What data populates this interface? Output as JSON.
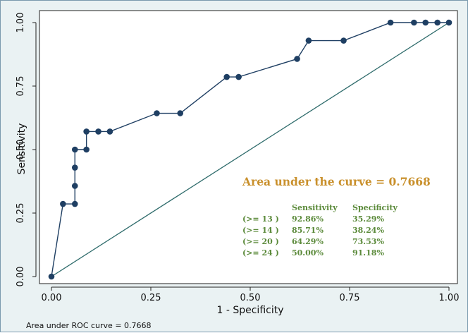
{
  "chart_data": {
    "type": "line",
    "xlabel": "1 - Specificity",
    "ylabel": "Sensitivity",
    "xlim": [
      0,
      1
    ],
    "ylim": [
      0,
      1
    ],
    "x_ticks": [
      "0.00",
      "0.25",
      "0.50",
      "0.75",
      "1.00"
    ],
    "y_ticks": [
      "0.00",
      "0.25",
      "0.50",
      "0.75",
      "1.00"
    ],
    "grid": false,
    "series": [
      {
        "values": [
          {
            "x": 0.0,
            "y": 0.0
          },
          {
            "x": 0.029,
            "y": 0.286
          },
          {
            "x": 0.059,
            "y": 0.286
          },
          {
            "x": 0.059,
            "y": 0.357
          },
          {
            "x": 0.059,
            "y": 0.429
          },
          {
            "x": 0.059,
            "y": 0.5
          },
          {
            "x": 0.088,
            "y": 0.5
          },
          {
            "x": 0.088,
            "y": 0.571
          },
          {
            "x": 0.118,
            "y": 0.571
          },
          {
            "x": 0.147,
            "y": 0.571
          },
          {
            "x": 0.265,
            "y": 0.643
          },
          {
            "x": 0.324,
            "y": 0.643
          },
          {
            "x": 0.441,
            "y": 0.786
          },
          {
            "x": 0.471,
            "y": 0.786
          },
          {
            "x": 0.618,
            "y": 0.857
          },
          {
            "x": 0.647,
            "y": 0.929
          },
          {
            "x": 0.735,
            "y": 0.929
          },
          {
            "x": 0.853,
            "y": 1.0
          },
          {
            "x": 0.912,
            "y": 1.0
          },
          {
            "x": 0.941,
            "y": 1.0
          },
          {
            "x": 0.971,
            "y": 1.0
          },
          {
            "x": 1.0,
            "y": 1.0
          }
        ],
        "color": "#1f3f63"
      },
      {
        "values": [
          {
            "x": 0,
            "y": 0
          },
          {
            "x": 1,
            "y": 1
          }
        ],
        "color": "#2e6b6b"
      }
    ],
    "annotations": {
      "auc_title": "Area under the curve = 0.7668",
      "table": {
        "headers": [
          "Sensitivity",
          "Specificity"
        ],
        "rows": [
          {
            "cutoff": "(>= 13 )",
            "sensitivity": "92.86%",
            "specificity": "35.29%"
          },
          {
            "cutoff": "(>= 14 )",
            "sensitivity": "85.71%",
            "specificity": "38.24%"
          },
          {
            "cutoff": "(>= 20 )",
            "sensitivity": "64.29%",
            "specificity": "73.53%"
          },
          {
            "cutoff": "(>= 24 )",
            "sensitivity": "50.00%",
            "specificity": "91.18%"
          }
        ]
      },
      "footnote": "Area under ROC curve = 0.7668"
    },
    "colors": {
      "background": "#eaf2f3",
      "plot_area": "#ffffff",
      "title_text": "#c9902c",
      "table_text": "#5b8a3a"
    }
  }
}
